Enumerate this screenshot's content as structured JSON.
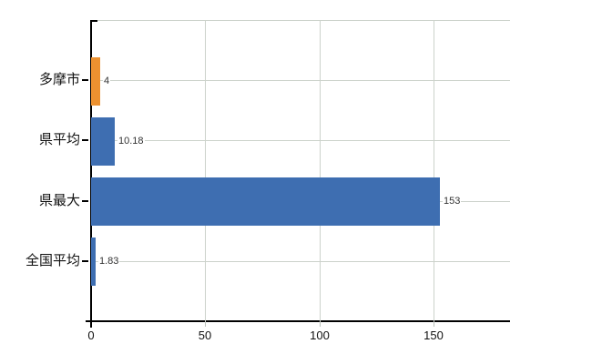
{
  "chart_data": {
    "type": "bar",
    "orientation": "horizontal",
    "title": "",
    "xlabel": "",
    "ylabel": "",
    "categories": [
      "多摩市",
      "県平均",
      "県最大",
      "全国平均"
    ],
    "values": [
      4,
      10.18,
      153,
      1.83
    ],
    "value_labels": [
      "4",
      "10.18",
      "153",
      "1.83"
    ],
    "bar_colors": [
      "#ec9130",
      "#3e6eb1",
      "#3e6eb1",
      "#3e6eb1"
    ],
    "x_tick_labels": [
      "0",
      "50",
      "100",
      "150"
    ],
    "x_tick_values": [
      0,
      50,
      100,
      150
    ],
    "xlim": [
      0,
      183.6
    ],
    "grid": "on",
    "legend": "none",
    "background": "#ffffff"
  },
  "colors": {
    "axis": "#000000",
    "grid": "#ccd2cb",
    "bar_orange": "#ec9130",
    "bar_blue": "#3e6eb1",
    "value_label": "#333333",
    "category_label": "#111111",
    "tick_label": "#111111",
    "background": "#ffffff"
  }
}
